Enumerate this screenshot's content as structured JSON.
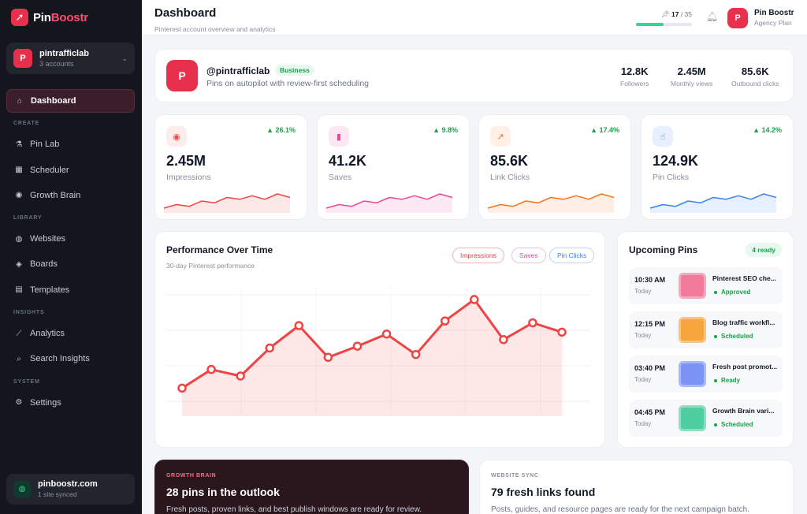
{
  "brand": {
    "name_part1": "Pin",
    "name_part2": "Boostr"
  },
  "account": {
    "name": "pintrafficlab",
    "sub": "3 accounts",
    "initial": "P"
  },
  "nav": {
    "dashboard": "Dashboard",
    "section_create": "CREATE",
    "pin_lab": "Pin Lab",
    "scheduler": "Scheduler",
    "growth_brain": "Growth Brain",
    "section_library": "LIBRARY",
    "websites": "Websites",
    "boards": "Boards",
    "templates": "Templates",
    "section_insights": "INSIGHTS",
    "analytics": "Analytics",
    "search_insights": "Search Insights",
    "section_system": "SYSTEM",
    "settings": "Settings"
  },
  "site": {
    "name": "pinboostr.com",
    "sub": "1 site synced"
  },
  "header": {
    "title": "Dashboard",
    "subtitle": "Pinterest account overview and analytics",
    "quota_used": "17",
    "quota_total": "/ 35",
    "quota_fraction": 0.486,
    "user_initial": "P",
    "user_name": "Pin Boostr",
    "user_plan": "Agency Plan"
  },
  "profile": {
    "initial": "P",
    "handle": "@pintrafficlab",
    "badge": "Business",
    "tagline": "Pins on autopilot with review-first scheduling",
    "stats": [
      {
        "value": "12.8K",
        "label": "Followers"
      },
      {
        "value": "2.45M",
        "label": "Monthly views"
      },
      {
        "value": "85.6K",
        "label": "Outbound clicks"
      }
    ]
  },
  "metrics": [
    {
      "value": "2.45M",
      "label": "Impressions",
      "change": "▲ 26.1%",
      "icon": "eye-icon",
      "color": "#ef4444",
      "bg": "#fdecec",
      "spark": [
        3,
        5,
        4,
        7,
        6,
        9,
        8,
        10,
        8,
        11,
        9
      ]
    },
    {
      "value": "41.2K",
      "label": "Saves",
      "change": "▲ 9.8%",
      "icon": "bookmark-icon",
      "color": "#ec4899",
      "bg": "#fde8f2",
      "spark": [
        3,
        5,
        4,
        7,
        6,
        9,
        8,
        10,
        8,
        11,
        9
      ]
    },
    {
      "value": "85.6K",
      "label": "Link Clicks",
      "change": "▲ 17.4%",
      "icon": "external-link-icon",
      "color": "#f97316",
      "bg": "#fef0e4",
      "spark": [
        3,
        5,
        4,
        7,
        6,
        9,
        8,
        10,
        8,
        11,
        9
      ]
    },
    {
      "value": "124.9K",
      "label": "Pin Clicks",
      "change": "▲ 14.2%",
      "icon": "pointer-icon",
      "color": "#3b82f6",
      "bg": "#e8f0fe",
      "spark": [
        3,
        5,
        4,
        7,
        6,
        9,
        8,
        10,
        8,
        11,
        9
      ]
    }
  ],
  "performance": {
    "title": "Performance Over Time",
    "subtitle": "30-day Pinterest performance",
    "legend": [
      "Impressions",
      "Saves",
      "Pin Clicks"
    ]
  },
  "chart_data": {
    "type": "area",
    "series": [
      {
        "name": "Impressions",
        "values": [
          2,
          4,
          3.3,
          6.3,
          8.7,
          5.3,
          6.5,
          7.8,
          5.6,
          9.2,
          11.5,
          7.2,
          9.0,
          8.0
        ]
      }
    ],
    "ylim": [
      0,
      12
    ],
    "grid": true,
    "color": "#ef4444"
  },
  "upcoming": {
    "title": "Upcoming Pins",
    "ready_badge": "4 ready",
    "items": [
      {
        "time": "10:30 AM",
        "day": "Today",
        "name": "Pinterest SEO che...",
        "status": "Approved",
        "color": "#f27a9b"
      },
      {
        "time": "12:15 PM",
        "day": "Today",
        "name": "Blog traffic workfl...",
        "status": "Scheduled",
        "color": "#f6a53d"
      },
      {
        "time": "03:40 PM",
        "day": "Today",
        "name": "Fresh post promot...",
        "status": "Ready",
        "color": "#7b93f5"
      },
      {
        "time": "04:45 PM",
        "day": "Today",
        "name": "Growth Brain vari...",
        "status": "Scheduled",
        "color": "#4fcfa0"
      }
    ]
  },
  "growth_brain": {
    "kicker": "GROWTH BRAIN",
    "title": "28 pins in the outlook",
    "text": "Fresh posts, proven links, and best publish windows are ready for review."
  },
  "website_sync": {
    "kicker": "WEBSITE SYNC",
    "title": "79 fresh links found",
    "text": "Posts, guides, and resource pages are ready for the next campaign batch."
  }
}
